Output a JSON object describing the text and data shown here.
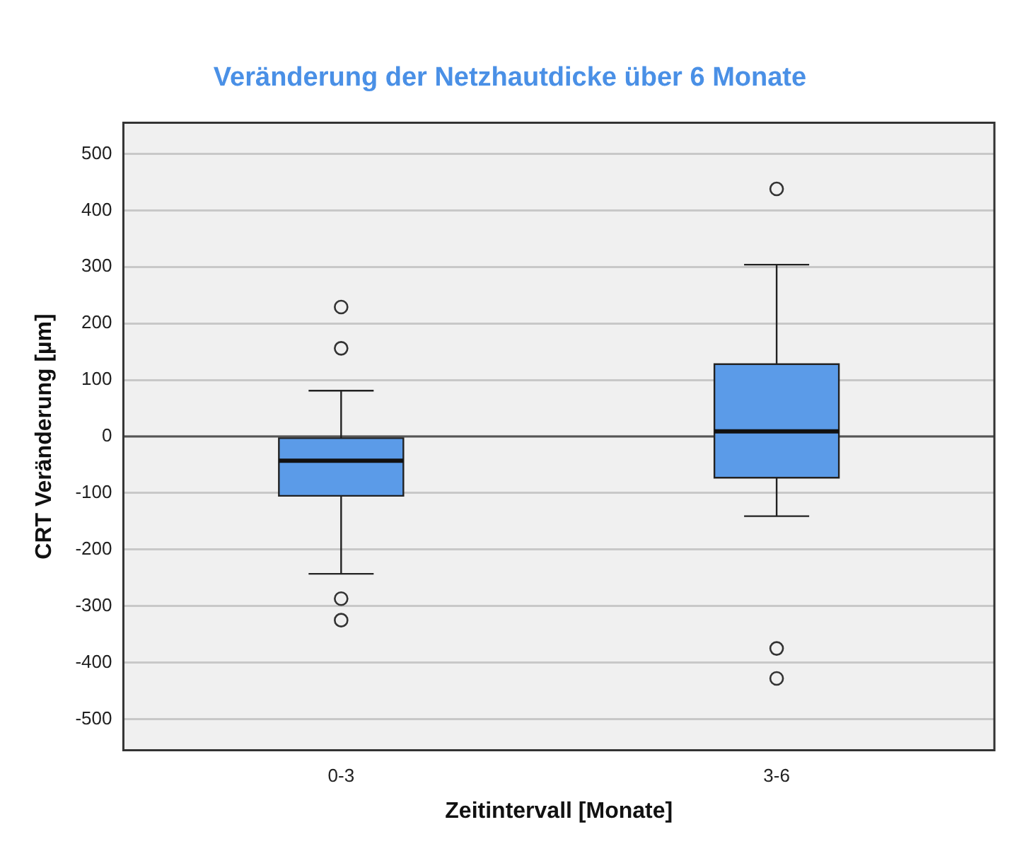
{
  "chart_data": {
    "type": "box",
    "title": "Veränderung der Netzhautdicke über 6 Monate",
    "xlabel": "Zeitintervall [Monate]",
    "ylabel": "CRT Veränderung [µm]",
    "categories": [
      "0-3",
      "3-6"
    ],
    "color": "#5b9be8",
    "boxes": [
      {
        "low": -243,
        "q1": -105,
        "median": -43,
        "q3": -3,
        "high": 81,
        "outliers": [
          229,
          156,
          -287,
          -325
        ]
      },
      {
        "low": -141,
        "q1": -73,
        "median": 9,
        "q3": 128,
        "high": 304,
        "outliers": [
          438,
          -375,
          -428
        ]
      }
    ],
    "ylim": [
      -555,
      555
    ],
    "yticks": [
      -500,
      -400,
      -300,
      -200,
      -100,
      0,
      100,
      200,
      300,
      400,
      500
    ],
    "grid": "y",
    "legend": false,
    "ref_lines": [
      {
        "axis": "y",
        "value": 0,
        "color": "#555555"
      }
    ]
  }
}
